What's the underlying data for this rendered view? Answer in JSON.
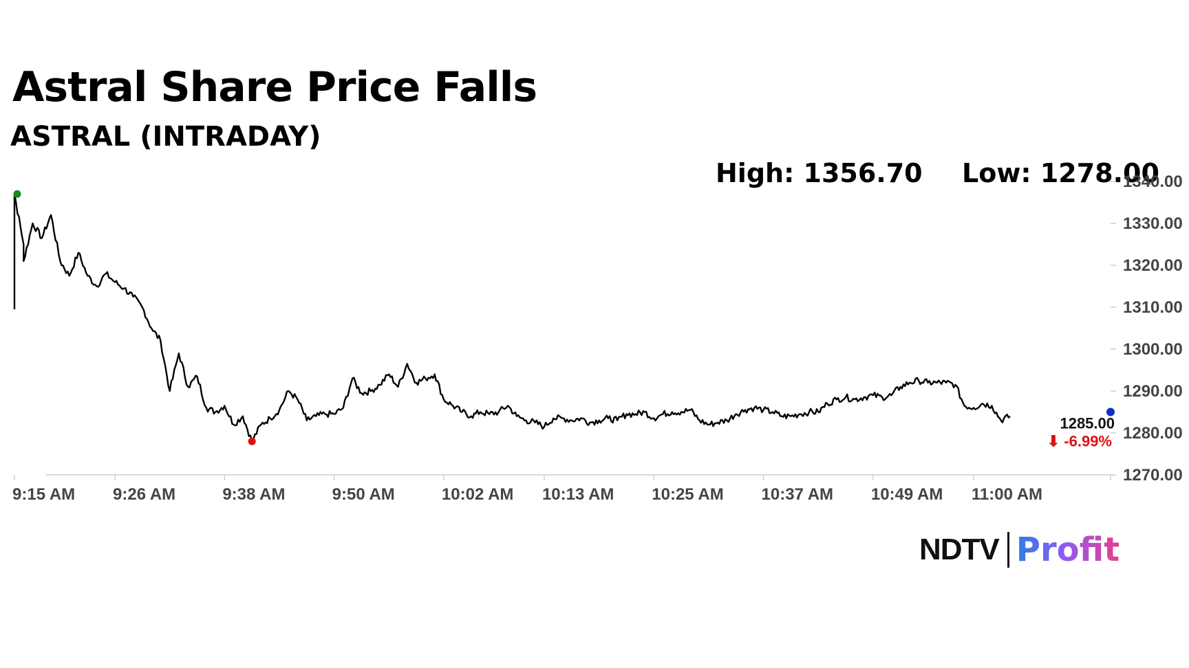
{
  "header": {
    "title": "Astral Share Price Falls",
    "subtitle": "ASTRAL (INTRADAY)",
    "high_text": "High: 1356.70",
    "low_text": "Low: 1278.00"
  },
  "logo": {
    "ndtv": "NDTV",
    "profit": "Profit"
  },
  "chart_data": {
    "type": "line",
    "title": "Astral Share Price Falls",
    "subtitle": "ASTRAL (INTRADAY)",
    "xlabel": "",
    "ylabel": "",
    "x_ticks": [
      "9:15 AM",
      "9:26 AM",
      "9:38 AM",
      "9:50 AM",
      "10:02 AM",
      "10:13 AM",
      "10:25 AM",
      "10:37 AM",
      "10:49 AM",
      "11:00 AM"
    ],
    "x_range": [
      "9:15 AM",
      "11:15 AM"
    ],
    "y_ticks": [
      1340,
      1330,
      1320,
      1310,
      1300,
      1290,
      1280,
      1270
    ],
    "y_tick_labels": [
      "1340.00",
      "1330.00",
      "1320.00",
      "1310.00",
      "1300.00",
      "1290.00",
      "1280.00",
      "1270.00"
    ],
    "ylim": [
      1270,
      1340
    ],
    "y_axis_side": "right",
    "grid": false,
    "high": 1356.7,
    "low": 1278.0,
    "last_value_label": "1285.00",
    "change_label": "-6.99%",
    "colors": {
      "line": "#000000",
      "high_marker": "#1a8a1a",
      "low_marker": "#e01010",
      "last_marker": "#1030c0",
      "change": "#e01010",
      "axis": "#cccccc"
    },
    "series": [
      {
        "points": [
          [
            "9:15 AM",
            1309.5
          ],
          [
            "9:15 AM",
            1337.0
          ],
          [
            "9:16 AM",
            1325.0
          ],
          [
            "9:16 AM",
            1321.0
          ],
          [
            "9:17 AM",
            1330.0
          ],
          [
            "9:18 AM",
            1326.5
          ],
          [
            "9:19 AM",
            1332.0
          ],
          [
            "9:20 AM",
            1321.0
          ],
          [
            "9:21 AM",
            1317.5
          ],
          [
            "9:22 AM",
            1323.0
          ],
          [
            "9:23 AM",
            1317.5
          ],
          [
            "9:24 AM",
            1315.0
          ],
          [
            "9:25 AM",
            1318.0
          ],
          [
            "9:26 AM",
            1316.0
          ],
          [
            "9:27 AM",
            1314.5
          ],
          [
            "9:28 AM",
            1312.5
          ],
          [
            "9:29 AM",
            1310.0
          ],
          [
            "9:30 AM",
            1305.0
          ],
          [
            "9:31 AM",
            1302.0
          ],
          [
            "9:32 AM",
            1290.0
          ],
          [
            "9:33 AM",
            1299.0
          ],
          [
            "9:34 AM",
            1291.0
          ],
          [
            "9:35 AM",
            1293.5
          ],
          [
            "9:36 AM",
            1286.0
          ],
          [
            "9:37 AM",
            1285.0
          ],
          [
            "9:38 AM",
            1286.5
          ],
          [
            "9:39 AM",
            1282.0
          ],
          [
            "9:40 AM",
            1284.0
          ],
          [
            "9:41 AM",
            1278.0
          ],
          [
            "9:42 AM",
            1282.0
          ],
          [
            "9:43 AM",
            1283.5
          ],
          [
            "9:44 AM",
            1285.5
          ],
          [
            "9:45 AM",
            1290.0
          ],
          [
            "9:46 AM",
            1288.0
          ],
          [
            "9:47 AM",
            1283.0
          ],
          [
            "9:48 AM",
            1284.0
          ],
          [
            "9:49 AM",
            1284.5
          ],
          [
            "9:50 AM",
            1284.5
          ],
          [
            "9:51 AM",
            1286.0
          ],
          [
            "9:52 AM",
            1293.0
          ],
          [
            "9:53 AM",
            1289.5
          ],
          [
            "9:54 AM",
            1290.0
          ],
          [
            "9:55 AM",
            1291.5
          ],
          [
            "9:56 AM",
            1294.0
          ],
          [
            "9:57 AM",
            1291.0
          ],
          [
            "9:58 AM",
            1296.5
          ],
          [
            "9:59 AM",
            1292.0
          ],
          [
            "10:00 AM",
            1293.0
          ],
          [
            "10:01 AM",
            1294.0
          ],
          [
            "10:02 AM",
            1288.0
          ],
          [
            "10:03 AM",
            1286.5
          ],
          [
            "10:04 AM",
            1285.0
          ],
          [
            "10:05 AM",
            1284.0
          ],
          [
            "10:06 AM",
            1285.0
          ],
          [
            "10:07 AM",
            1284.5
          ],
          [
            "10:08 AM",
            1285.0
          ],
          [
            "10:09 AM",
            1286.5
          ],
          [
            "10:10 AM",
            1284.0
          ],
          [
            "10:11 AM",
            1283.0
          ],
          [
            "10:12 AM",
            1282.5
          ],
          [
            "10:13 AM",
            1281.5
          ],
          [
            "10:14 AM",
            1283.5
          ],
          [
            "10:15 AM",
            1283.5
          ],
          [
            "10:16 AM",
            1283.0
          ],
          [
            "10:17 AM",
            1283.5
          ],
          [
            "10:18 AM",
            1282.5
          ],
          [
            "10:19 AM",
            1283.0
          ],
          [
            "10:20 AM",
            1283.5
          ],
          [
            "10:21 AM",
            1283.0
          ],
          [
            "10:22 AM",
            1284.5
          ],
          [
            "10:23 AM",
            1284.5
          ],
          [
            "10:24 AM",
            1285.0
          ],
          [
            "10:25 AM",
            1283.5
          ],
          [
            "10:26 AM",
            1284.5
          ],
          [
            "10:27 AM",
            1285.0
          ],
          [
            "10:28 AM",
            1285.0
          ],
          [
            "10:29 AM",
            1285.5
          ],
          [
            "10:30 AM",
            1283.0
          ],
          [
            "10:31 AM",
            1282.0
          ],
          [
            "10:32 AM",
            1282.5
          ],
          [
            "10:33 AM",
            1283.0
          ],
          [
            "10:34 AM",
            1284.5
          ],
          [
            "10:35 AM",
            1285.5
          ],
          [
            "10:36 AM",
            1286.0
          ],
          [
            "10:37 AM",
            1285.5
          ],
          [
            "10:38 AM",
            1285.0
          ],
          [
            "10:39 AM",
            1284.0
          ],
          [
            "10:40 AM",
            1284.0
          ],
          [
            "10:41 AM",
            1284.5
          ],
          [
            "10:42 AM",
            1285.0
          ],
          [
            "10:43 AM",
            1285.0
          ],
          [
            "10:44 AM",
            1287.0
          ],
          [
            "10:45 AM",
            1288.0
          ],
          [
            "10:46 AM",
            1288.5
          ],
          [
            "10:47 AM",
            1288.0
          ],
          [
            "10:48 AM",
            1288.5
          ],
          [
            "10:49 AM",
            1289.0
          ],
          [
            "10:50 AM",
            1288.5
          ],
          [
            "10:51 AM",
            1289.0
          ],
          [
            "10:52 AM",
            1291.0
          ],
          [
            "10:53 AM",
            1292.0
          ],
          [
            "10:54 AM",
            1292.5
          ],
          [
            "10:55 AM",
            1292.0
          ],
          [
            "10:56 AM",
            1292.0
          ],
          [
            "10:57 AM",
            1292.0
          ],
          [
            "10:58 AM",
            1291.5
          ],
          [
            "10:59 AM",
            1286.5
          ],
          [
            "11:00 AM",
            1286.0
          ],
          [
            "11:01 AM",
            1287.0
          ],
          [
            "11:02 AM",
            1286.5
          ],
          [
            "11:03 AM",
            1283.0
          ],
          [
            "11:04 AM",
            1284.0
          ]
        ]
      }
    ]
  }
}
